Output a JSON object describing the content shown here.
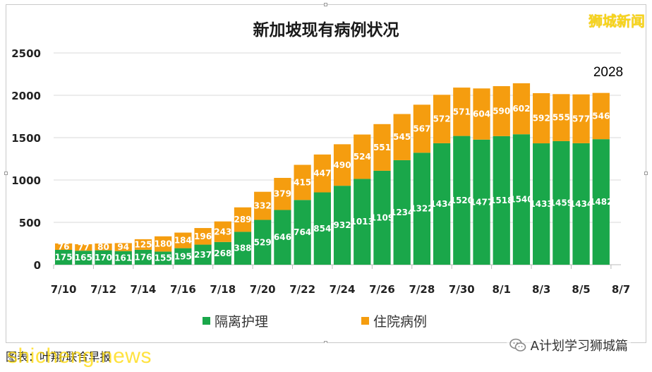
{
  "brand": {
    "label": "狮城新闻"
  },
  "footer": {
    "caption": "图表：叶翔/联合早报",
    "watermark": "shicheng.news",
    "credit": "A计划学习狮城篇"
  },
  "colors": {
    "isolation": "#1aa74a",
    "hospital": "#f59d0f",
    "grid": "#d9d9d9",
    "annotation": "#000000"
  },
  "chart_data": {
    "type": "bar",
    "stacked": true,
    "title": "新加坡现有病例状况",
    "xlabel": "",
    "ylabel": "",
    "ylim": [
      0,
      2500
    ],
    "yticks": [
      0,
      500,
      1000,
      1500,
      2000,
      2500
    ],
    "grid": true,
    "legend_position": "bottom",
    "annotation": {
      "text": "2028"
    },
    "categories": [
      "7/10",
      "7/11",
      "7/12",
      "7/13",
      "7/14",
      "7/15",
      "7/16",
      "7/17",
      "7/18",
      "7/19",
      "7/20",
      "7/21",
      "7/22",
      "7/23",
      "7/24",
      "7/25",
      "7/26",
      "7/27",
      "7/28",
      "7/29",
      "7/30",
      "7/31",
      "8/1",
      "8/2",
      "8/3",
      "8/4",
      "8/5",
      "8/6",
      "8/7"
    ],
    "x_tick_labels": [
      "7/10",
      "7/12",
      "7/14",
      "7/16",
      "7/18",
      "7/20",
      "7/22",
      "7/24",
      "7/26",
      "7/28",
      "7/30",
      "8/1",
      "8/3",
      "8/5",
      "8/7"
    ],
    "series": [
      {
        "name": "隔离护理",
        "color": "#1aa74a",
        "values": [
          175,
          165,
          170,
          161,
          176,
          155,
          195,
          237,
          268,
          388,
          529,
          646,
          764,
          854,
          932,
          1013,
          1109,
          1234,
          1322,
          1434,
          1520,
          1477,
          1518,
          1540,
          1433,
          1459,
          1434,
          1482,
          null
        ]
      },
      {
        "name": "住院病例",
        "color": "#f59d0f",
        "values": [
          76,
          77,
          80,
          94,
          125,
          180,
          184,
          196,
          243,
          289,
          332,
          379,
          415,
          447,
          490,
          524,
          551,
          545,
          567,
          572,
          571,
          604,
          590,
          602,
          592,
          555,
          577,
          546,
          null
        ]
      }
    ]
  }
}
